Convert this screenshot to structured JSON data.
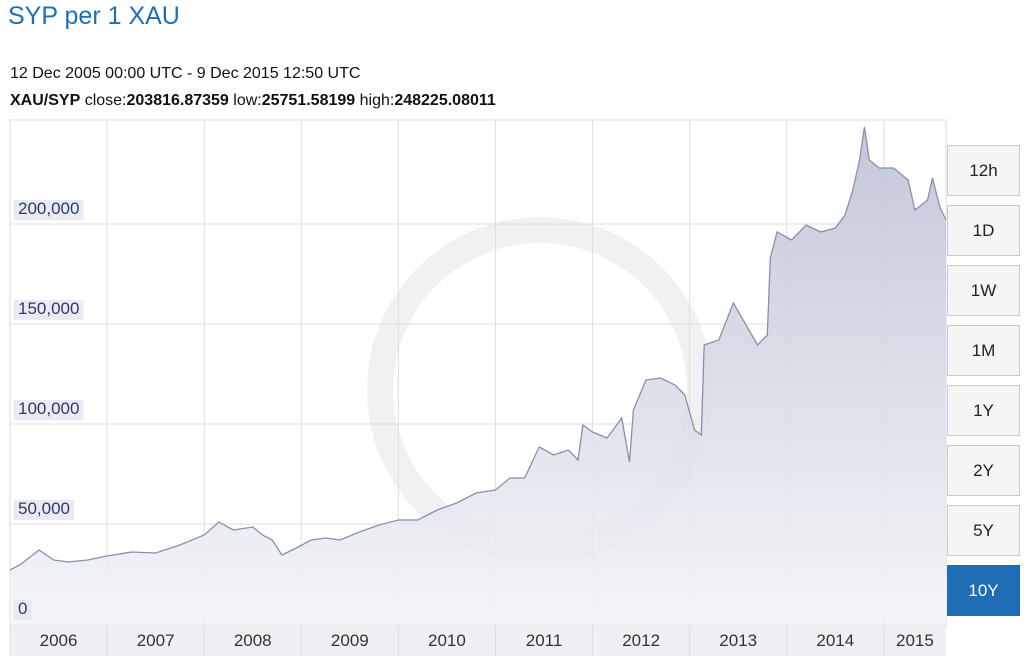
{
  "header": {
    "title": "SYP per 1 XAU",
    "date_range": "12 Dec 2005 00:00 UTC - 9 Dec 2015 12:50 UTC",
    "pair": "XAU/SYP",
    "close_label": "close:",
    "close": "203816.87359",
    "low_label": "low:",
    "low": "25751.58199",
    "high_label": "high:",
    "high": "248225.08011"
  },
  "range_buttons": {
    "options": [
      "12h",
      "1D",
      "1W",
      "1M",
      "1Y",
      "2Y",
      "5Y",
      "10Y"
    ],
    "selected": "10Y"
  },
  "chart_data": {
    "type": "area",
    "color": "#8790ab",
    "x": [
      2006.0,
      2006.1,
      2006.3,
      2006.45,
      2006.6,
      2006.8,
      2007.0,
      2007.25,
      2007.5,
      2007.75,
      2008.0,
      2008.15,
      2008.3,
      2008.5,
      2008.6,
      2008.7,
      2008.8,
      2008.95,
      2009.1,
      2009.25,
      2009.4,
      2009.6,
      2009.8,
      2010.0,
      2010.2,
      2010.4,
      2010.6,
      2010.8,
      2011.0,
      2011.15,
      2011.3,
      2011.45,
      2011.6,
      2011.75,
      2011.85,
      2011.9,
      2012.0,
      2012.15,
      2012.3,
      2012.38,
      2012.42,
      2012.55,
      2012.7,
      2012.85,
      2012.95,
      2013.05,
      2013.12,
      2013.15,
      2013.3,
      2013.45,
      2013.55,
      2013.7,
      2013.8,
      2013.83,
      2013.9,
      2014.05,
      2014.2,
      2014.35,
      2014.5,
      2014.6,
      2014.68,
      2014.75,
      2014.8,
      2014.85,
      2014.95,
      2015.1,
      2015.25,
      2015.32,
      2015.45,
      2015.5,
      2015.58,
      2015.64
    ],
    "values": [
      27000,
      29500,
      37000,
      32000,
      31000,
      32000,
      34000,
      36000,
      35500,
      39500,
      44500,
      51000,
      47000,
      48500,
      44500,
      42000,
      34500,
      38000,
      42000,
      43000,
      42000,
      46000,
      49500,
      52000,
      52000,
      57000,
      60500,
      65500,
      67000,
      73000,
      73000,
      88500,
      84500,
      87000,
      82000,
      99500,
      96000,
      93000,
      103000,
      81000,
      107000,
      122000,
      123000,
      119500,
      114500,
      97000,
      94500,
      139500,
      142000,
      160500,
      152000,
      139500,
      144500,
      183000,
      196000,
      192000,
      199500,
      196000,
      198000,
      204500,
      217000,
      232000,
      248500,
      232000,
      228000,
      228000,
      222000,
      207000,
      212000,
      223000,
      208000,
      202000
    ],
    "xlim": [
      2006,
      2015.64
    ],
    "xticks": [
      2006,
      2007,
      2008,
      2009,
      2010,
      2011,
      2012,
      2013,
      2014,
      2015
    ],
    "ylim": [
      0,
      252000
    ],
    "yticks": [
      0,
      {
        "value": 50000,
        "label": "50,000"
      },
      {
        "value": 100000,
        "label": "100,000"
      },
      {
        "value": 150000,
        "label": "150,000"
      },
      {
        "value": 200000,
        "label": "200,000"
      }
    ],
    "grid": true
  }
}
